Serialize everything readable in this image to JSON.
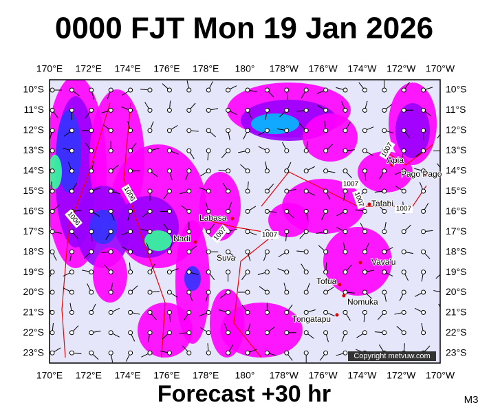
{
  "header": {
    "title": "0000 FJT Mon 19 Jan 2026"
  },
  "map": {
    "lon_labels": [
      "170°E",
      "172°E",
      "174°E",
      "176°E",
      "178°E",
      "180°",
      "178°W",
      "176°W",
      "174°W",
      "172°W",
      "170°W"
    ],
    "lat_labels": [
      "10°S",
      "11°S",
      "12°S",
      "13°S",
      "14°S",
      "15°S",
      "16°S",
      "17°S",
      "18°S",
      "19°S",
      "20°S",
      "21°S",
      "22°S",
      "23°S"
    ],
    "places": [
      "Apia",
      "Pago Pago",
      "Tafahi",
      "Labasa",
      "Nadi",
      "Suva",
      "Vava'u",
      "Tofua",
      "Nomuka",
      "Tongatapu"
    ],
    "isobar_labels": [
      "1007",
      "1007",
      "1007",
      "1007",
      "1007",
      "1007",
      "1006",
      "1006"
    ],
    "copyright": "Copyright metvuw.com"
  },
  "footer": {
    "forecast": "Forecast +30 hr",
    "code": "M3"
  }
}
